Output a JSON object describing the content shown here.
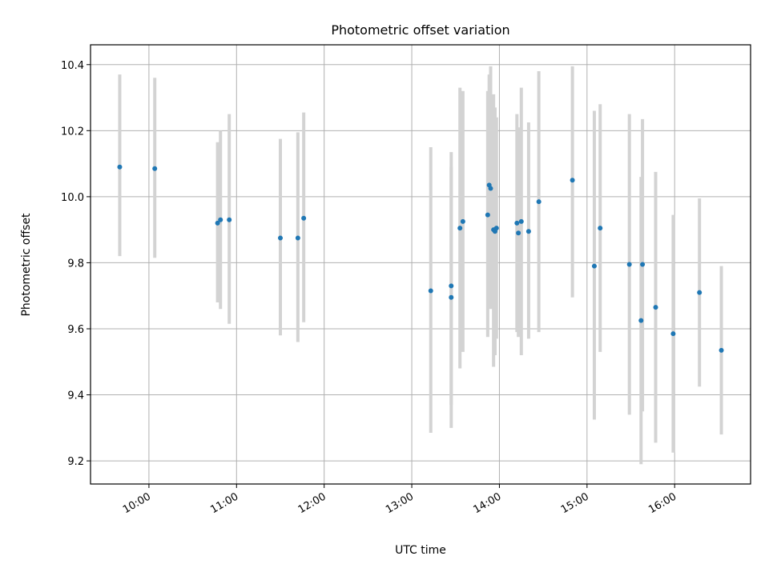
{
  "chart_data": {
    "type": "scatter",
    "title": "Photometric offset variation",
    "xlabel": "UTC time",
    "ylabel": "Photometric offset",
    "xlim": [
      "09:20",
      "16:52"
    ],
    "ylim": [
      9.13,
      10.46
    ],
    "grid": true,
    "x_ticks": [
      "10:00",
      "11:00",
      "12:00",
      "13:00",
      "14:00",
      "15:00",
      "16:00"
    ],
    "y_ticks": [
      9.2,
      9.4,
      9.6,
      9.8,
      10.0,
      10.2,
      10.4
    ],
    "point_color": "#1f77b4",
    "errorbar_color": "#d3d3d3",
    "points": [
      {
        "x": "09:40",
        "y": 10.09,
        "low": 9.82,
        "high": 10.37
      },
      {
        "x": "10:04",
        "y": 10.085,
        "low": 9.815,
        "high": 10.36
      },
      {
        "x": "10:47",
        "y": 9.92,
        "low": 9.68,
        "high": 10.165
      },
      {
        "x": "10:49",
        "y": 9.93,
        "low": 9.66,
        "high": 10.2
      },
      {
        "x": "10:55",
        "y": 9.93,
        "low": 9.615,
        "high": 10.25
      },
      {
        "x": "11:30",
        "y": 9.875,
        "low": 9.58,
        "high": 10.175
      },
      {
        "x": "11:42",
        "y": 9.875,
        "low": 9.56,
        "high": 10.195
      },
      {
        "x": "11:46",
        "y": 9.935,
        "low": 9.62,
        "high": 10.255
      },
      {
        "x": "13:13",
        "y": 9.715,
        "low": 9.285,
        "high": 10.15
      },
      {
        "x": "13:27",
        "y": 9.73,
        "low": 9.37,
        "high": 10.09
      },
      {
        "x": "13:27",
        "y": 9.695,
        "low": 9.3,
        "high": 10.135
      },
      {
        "x": "13:33",
        "y": 9.905,
        "low": 9.48,
        "high": 10.33
      },
      {
        "x": "13:35",
        "y": 9.925,
        "low": 9.53,
        "high": 10.32
      },
      {
        "x": "13:52",
        "y": 9.945,
        "low": 9.575,
        "high": 10.32
      },
      {
        "x": "13:53",
        "y": 10.035,
        "low": 9.7,
        "high": 10.37
      },
      {
        "x": "13:54",
        "y": 10.025,
        "low": 9.66,
        "high": 10.395
      },
      {
        "x": "13:56",
        "y": 9.9,
        "low": 9.485,
        "high": 10.31
      },
      {
        "x": "13:57",
        "y": 9.895,
        "low": 9.52,
        "high": 10.27
      },
      {
        "x": "13:58",
        "y": 9.905,
        "low": 9.57,
        "high": 10.24
      },
      {
        "x": "14:12",
        "y": 9.92,
        "low": 9.59,
        "high": 10.25
      },
      {
        "x": "14:13",
        "y": 9.89,
        "low": 9.575,
        "high": 10.21
      },
      {
        "x": "14:15",
        "y": 9.925,
        "low": 9.52,
        "high": 10.33
      },
      {
        "x": "14:20",
        "y": 9.895,
        "low": 9.57,
        "high": 10.225
      },
      {
        "x": "14:27",
        "y": 9.985,
        "low": 9.59,
        "high": 10.38
      },
      {
        "x": "14:50",
        "y": 10.05,
        "low": 9.695,
        "high": 10.395
      },
      {
        "x": "15:05",
        "y": 9.79,
        "low": 9.325,
        "high": 10.26
      },
      {
        "x": "15:09",
        "y": 9.905,
        "low": 9.53,
        "high": 10.28
      },
      {
        "x": "15:29",
        "y": 9.795,
        "low": 9.34,
        "high": 10.25
      },
      {
        "x": "15:37",
        "y": 9.625,
        "low": 9.19,
        "high": 10.06
      },
      {
        "x": "15:38",
        "y": 9.795,
        "low": 9.35,
        "high": 10.235
      },
      {
        "x": "15:47",
        "y": 9.665,
        "low": 9.255,
        "high": 10.075
      },
      {
        "x": "15:59",
        "y": 9.585,
        "low": 9.225,
        "high": 9.945
      },
      {
        "x": "16:17",
        "y": 9.71,
        "low": 9.425,
        "high": 9.995
      },
      {
        "x": "16:32",
        "y": 9.535,
        "low": 9.28,
        "high": 9.79
      }
    ]
  }
}
